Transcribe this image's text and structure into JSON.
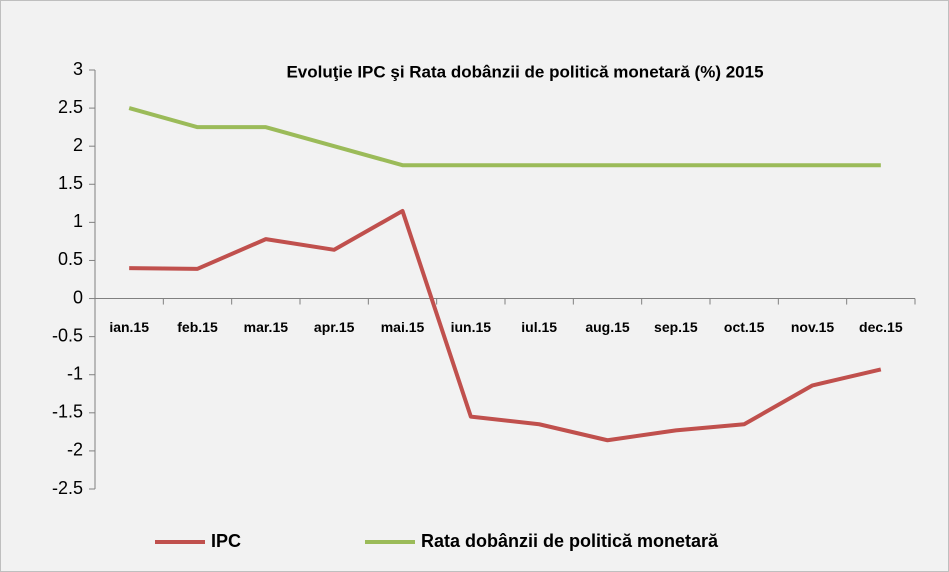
{
  "chart_data": {
    "type": "line",
    "title": "Evoluţie IPC şi Rata dobânzii de politică monetară (%) 2015",
    "categories": [
      "ian.15",
      "feb.15",
      "mar.15",
      "apr.15",
      "mai.15",
      "iun.15",
      "iul.15",
      "aug.15",
      "sep.15",
      "oct.15",
      "nov.15",
      "dec.15"
    ],
    "series": [
      {
        "name": "IPC",
        "color": "#c0504d",
        "values": [
          0.4,
          0.39,
          0.78,
          0.64,
          1.15,
          -1.55,
          -1.65,
          -1.86,
          -1.73,
          -1.65,
          -1.14,
          -0.93
        ]
      },
      {
        "name": "Rata dobânzii de politică monetară",
        "color": "#9bbb59",
        "values": [
          2.5,
          2.25,
          2.25,
          2.0,
          1.75,
          1.75,
          1.75,
          1.75,
          1.75,
          1.75,
          1.75,
          1.75
        ]
      }
    ],
    "ylim": [
      -2.5,
      3
    ],
    "yticks": [
      -2.5,
      -2,
      -1.5,
      -1,
      -0.5,
      0,
      0.5,
      1,
      1.5,
      2,
      2.5,
      3
    ],
    "grid": false,
    "legend": "bottom"
  }
}
